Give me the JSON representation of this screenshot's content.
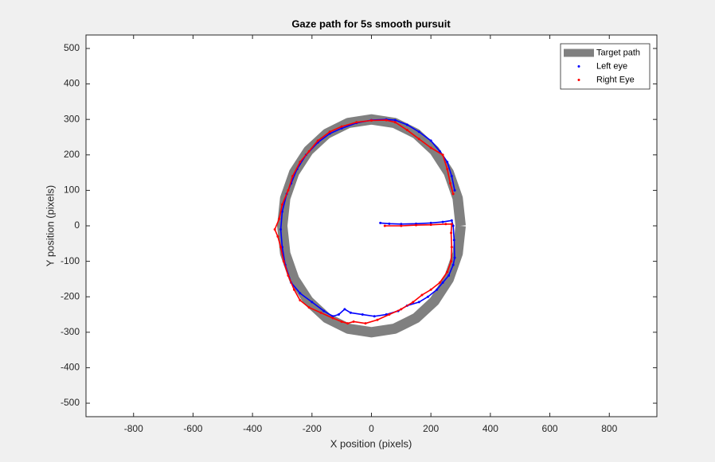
{
  "chart_data": {
    "type": "scatter",
    "title": "Gaze path for 5s smooth pursuit",
    "xlabel": "X position (pixels)",
    "ylabel": "Y position (pixels)",
    "xlim": [
      -960,
      960
    ],
    "ylim": [
      -538,
      538
    ],
    "xticks": [
      -800,
      -600,
      -400,
      -200,
      0,
      200,
      400,
      600,
      800
    ],
    "yticks": [
      -500,
      -400,
      -300,
      -200,
      -100,
      0,
      100,
      200,
      300,
      400,
      500
    ],
    "legend": "northeast",
    "series": [
      {
        "name": "Target path",
        "color": "#808080",
        "style": "thick-line",
        "x": [
          300,
          290,
          260,
          212,
          150,
          78,
          0,
          -78,
          -150,
          -212,
          -260,
          -290,
          -300,
          -290,
          -260,
          -212,
          -150,
          -78,
          0,
          78,
          150,
          212,
          260,
          290,
          300
        ],
        "values": [
          0,
          78,
          150,
          212,
          260,
          290,
          300,
          290,
          260,
          212,
          150,
          78,
          0,
          -78,
          -150,
          -212,
          -260,
          -290,
          -300,
          -290,
          -260,
          -212,
          -150,
          -78,
          0
        ]
      },
      {
        "name": "Left eye",
        "color": "#0000ff",
        "style": "dots",
        "x": [
          30,
          60,
          100,
          150,
          200,
          240,
          270,
          275,
          278,
          280,
          275,
          260,
          240,
          220,
          190,
          160,
          120,
          90,
          50,
          10,
          -30,
          -70,
          -90,
          -110,
          -130,
          -160,
          -200,
          -240,
          -270,
          -290,
          -300,
          -305,
          -300,
          -285,
          -270,
          -250,
          -220,
          -180,
          -140,
          -100,
          -50,
          0,
          50,
          80,
          120,
          160,
          200,
          230,
          255,
          270,
          280
        ],
        "values": [
          8,
          6,
          5,
          6,
          8,
          11,
          15,
          0,
          -40,
          -90,
          -110,
          -140,
          -160,
          -180,
          -200,
          -215,
          -225,
          -240,
          -250,
          -255,
          -250,
          -245,
          -235,
          -250,
          -255,
          -240,
          -215,
          -190,
          -160,
          -110,
          -60,
          -10,
          40,
          90,
          120,
          160,
          200,
          235,
          260,
          275,
          290,
          298,
          300,
          298,
          285,
          265,
          240,
          210,
          180,
          140,
          100
        ]
      },
      {
        "name": "Right Eye",
        "color": "#ff0000",
        "style": "dots",
        "x": [
          45,
          100,
          150,
          200,
          250,
          270,
          268,
          270,
          268,
          255,
          230,
          200,
          170,
          140,
          100,
          60,
          20,
          -20,
          -60,
          -80,
          -100,
          -130,
          -170,
          -210,
          -240,
          -260,
          -280,
          -295,
          -305,
          -315,
          -325,
          -310,
          -300,
          -280,
          -265,
          -240,
          -210,
          -180,
          -140,
          -100,
          -50,
          0,
          50,
          80,
          120,
          160,
          200,
          240,
          255,
          265,
          275
        ],
        "values": [
          0,
          0,
          2,
          3,
          5,
          5,
          -20,
          -60,
          -100,
          -130,
          -160,
          -180,
          -195,
          -215,
          -235,
          -250,
          -265,
          -275,
          -270,
          -275,
          -270,
          -260,
          -245,
          -230,
          -210,
          -180,
          -140,
          -100,
          -60,
          -30,
          -10,
          20,
          60,
          100,
          140,
          180,
          210,
          240,
          265,
          280,
          292,
          297,
          298,
          292,
          270,
          245,
          220,
          200,
          160,
          120,
          90
        ]
      }
    ]
  }
}
